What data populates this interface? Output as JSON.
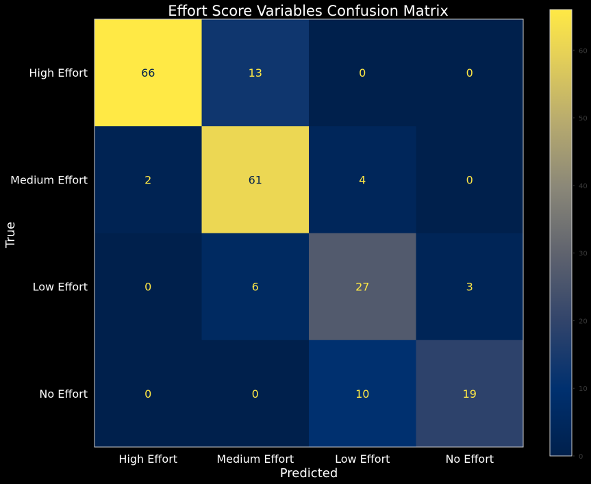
{
  "chart_data": {
    "type": "heatmap",
    "title": "Effort Score Variables Confusion Matrix",
    "xlabel": "Predicted",
    "ylabel": "True",
    "x_categories": [
      "High Effort",
      "Medium Effort",
      "Low Effort",
      "No Effort"
    ],
    "y_categories": [
      "High Effort",
      "Medium Effort",
      "Low Effort",
      "No Effort"
    ],
    "values": [
      [
        66,
        13,
        0,
        0
      ],
      [
        2,
        61,
        4,
        0
      ],
      [
        0,
        6,
        27,
        3
      ],
      [
        0,
        0,
        10,
        19
      ]
    ],
    "colormap": "cividis",
    "vmin": 0,
    "vmax": 66,
    "colorbar_ticks": [
      0,
      10,
      20,
      30,
      40,
      50,
      60
    ],
    "annotation_color": "#ffe945",
    "annotation_color_high": "#00204c",
    "grid": false
  }
}
